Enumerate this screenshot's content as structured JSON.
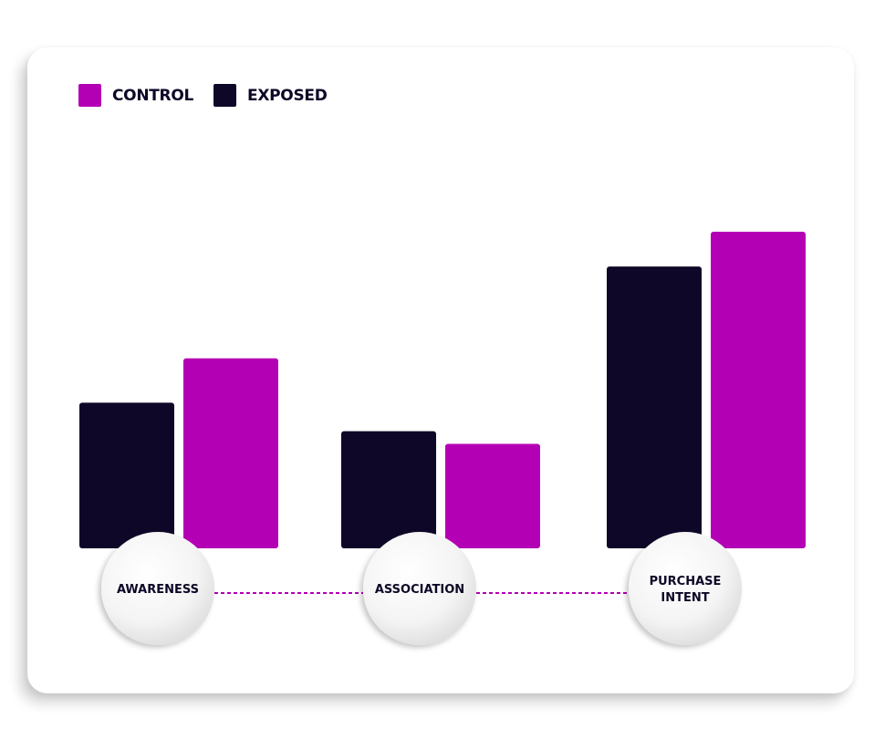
{
  "colors": {
    "control": "#b400b4",
    "exposed": "#0f0728",
    "dotted_line": "#b400b4"
  },
  "legend": {
    "control_label": "CONTROL",
    "exposed_label": "EXPOSED"
  },
  "chart_data": {
    "type": "bar",
    "categories": [
      "AWARENESS",
      "ASSOCIATION",
      "PURCHASE INTENT"
    ],
    "series": [
      {
        "name": "EXPOSED",
        "values": [
          46,
          37,
          89
        ]
      },
      {
        "name": "CONTROL",
        "values": [
          60,
          33,
          100
        ]
      }
    ],
    "ylim": [
      0,
      100
    ],
    "grid": false,
    "legend_position": "top-left"
  }
}
